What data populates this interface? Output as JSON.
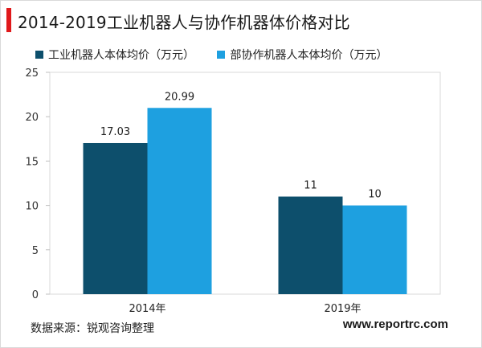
{
  "title": "2014-2019工业机器人与协作机器体价格对比",
  "source": "数据来源：锐观咨询整理",
  "site": "www.reportrc.com",
  "colors": {
    "accent": "#e0191b",
    "series1": "#0d4f6c",
    "series2": "#1ea0e0"
  },
  "chart_data": {
    "type": "bar",
    "categories": [
      "2014年",
      "2019年"
    ],
    "series": [
      {
        "name": "工业机器人本体均价（万元）",
        "values": [
          17.03,
          11
        ],
        "labels": [
          "17.03",
          "11"
        ]
      },
      {
        "name": "部协作机器人本体均价（万元）",
        "values": [
          20.99,
          10
        ],
        "labels": [
          "20.99",
          "10"
        ]
      }
    ],
    "ylim": [
      0,
      25
    ],
    "yticks": [
      0,
      5,
      10,
      15,
      20,
      25
    ],
    "grid": false,
    "legend": "top-left"
  }
}
